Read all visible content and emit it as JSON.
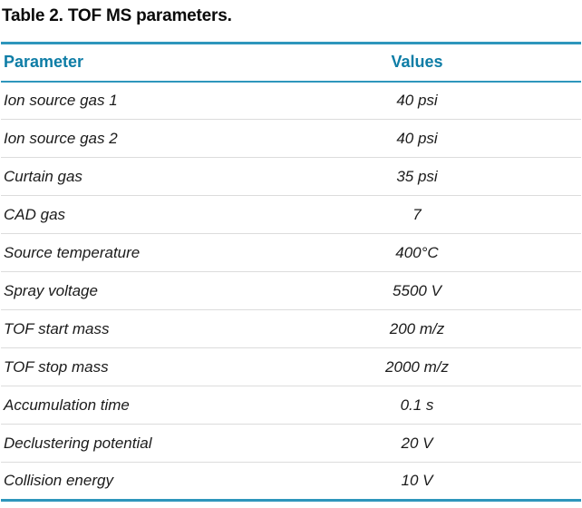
{
  "page": {
    "title": "Table 2. TOF MS parameters."
  },
  "table": {
    "headers": {
      "parameter": "Parameter",
      "values": "Values"
    },
    "rows": [
      {
        "parameter": "Ion source gas 1",
        "value": "40 psi"
      },
      {
        "parameter": "Ion source gas 2",
        "value": "40 psi"
      },
      {
        "parameter": "Curtain gas",
        "value": "35 psi"
      },
      {
        "parameter": "CAD gas",
        "value": "7"
      },
      {
        "parameter": "Source temperature",
        "value": "400°C"
      },
      {
        "parameter": "Spray voltage",
        "value": "5500 V"
      },
      {
        "parameter": "TOF start mass",
        "value": "200 m/z"
      },
      {
        "parameter": "TOF stop mass",
        "value": "2000 m/z"
      },
      {
        "parameter": "Accumulation time",
        "value": "0.1 s"
      },
      {
        "parameter": "Declustering potential",
        "value": "20 V"
      },
      {
        "parameter": "Collision energy",
        "value": "10 V"
      }
    ]
  },
  "colors": {
    "accent_teal": "#2E96BC",
    "header_text": "#0E7DA6",
    "row_divider": "#DCDCDC",
    "body_text": "#1B1B1B",
    "title_text": "#0A0A0A"
  }
}
